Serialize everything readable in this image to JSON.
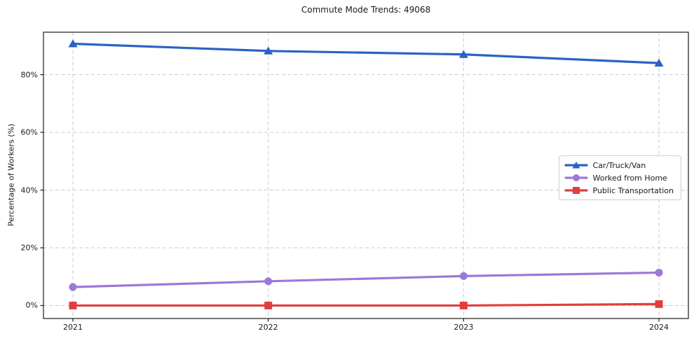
{
  "title": "Commute Mode Trends: 49068",
  "chart_data": {
    "type": "line",
    "title": "Commute Mode Trends: 49068",
    "xlabel": "",
    "ylabel": "Percentage of Workers (%)",
    "x": [
      2021,
      2022,
      2023,
      2024
    ],
    "x_tick_labels": [
      "2021",
      "2022",
      "2023",
      "2024"
    ],
    "y_ticks": [
      0,
      20,
      40,
      60,
      80
    ],
    "y_tick_labels": [
      "0%",
      "20%",
      "40%",
      "60%",
      "80%"
    ],
    "ylim": [
      -4.5,
      94.7
    ],
    "grid": true,
    "grid_style": "dashed",
    "legend_position": "center-right",
    "series": [
      {
        "name": "Car/Truck/Van",
        "color": "#2a62c4",
        "marker": "triangle",
        "values": [
          90.7,
          88.2,
          87.0,
          84.0
        ]
      },
      {
        "name": "Worked from Home",
        "color": "#9a79d8",
        "marker": "circle",
        "values": [
          6.4,
          8.4,
          10.2,
          11.4
        ]
      },
      {
        "name": "Public Transportation",
        "color": "#e23d3d",
        "marker": "square",
        "values": [
          0.0,
          0.0,
          0.0,
          0.5
        ]
      }
    ],
    "colors": {
      "grid": "#cbcbcb",
      "frame": "#1c1c1c",
      "text": "#1a1a1a"
    }
  }
}
